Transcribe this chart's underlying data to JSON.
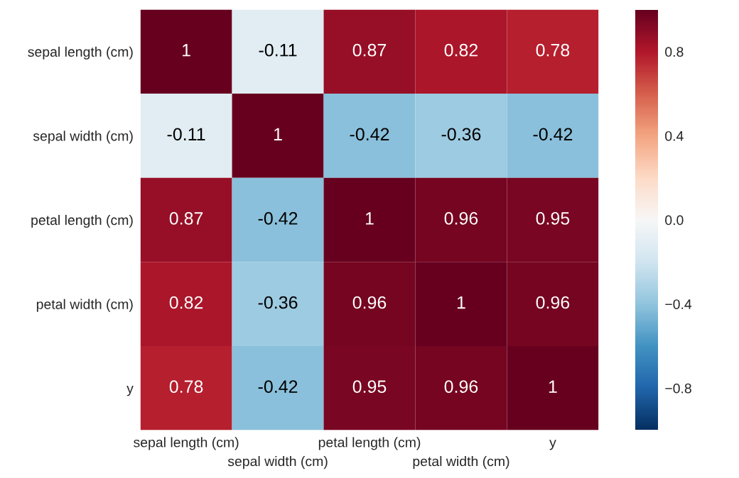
{
  "chart_data": {
    "type": "heatmap",
    "categories": [
      "sepal length (cm)",
      "sepal width (cm)",
      "petal length (cm)",
      "petal width (cm)",
      "y"
    ],
    "y_categories": [
      "sepal length (cm)",
      "sepal width (cm)",
      "petal length (cm)",
      "petal width (cm)",
      "y"
    ],
    "cells": [
      [
        1,
        -0.11,
        0.87,
        0.82,
        0.78
      ],
      [
        -0.11,
        1,
        -0.42,
        -0.36,
        -0.42
      ],
      [
        0.87,
        -0.42,
        1,
        0.96,
        0.95
      ],
      [
        0.82,
        -0.36,
        0.96,
        1,
        0.96
      ],
      [
        0.78,
        -0.42,
        0.95,
        0.96,
        1
      ]
    ],
    "data_labels": true,
    "clim": [
      -1,
      1
    ],
    "cticks": [
      {
        "value": -0.8,
        "label": "−0.8"
      },
      {
        "value": -0.4,
        "label": "−0.4"
      },
      {
        "value": 0,
        "label": "0.0"
      },
      {
        "value": 0.4,
        "label": "0.4"
      },
      {
        "value": 0.8,
        "label": "0.8"
      }
    ]
  }
}
